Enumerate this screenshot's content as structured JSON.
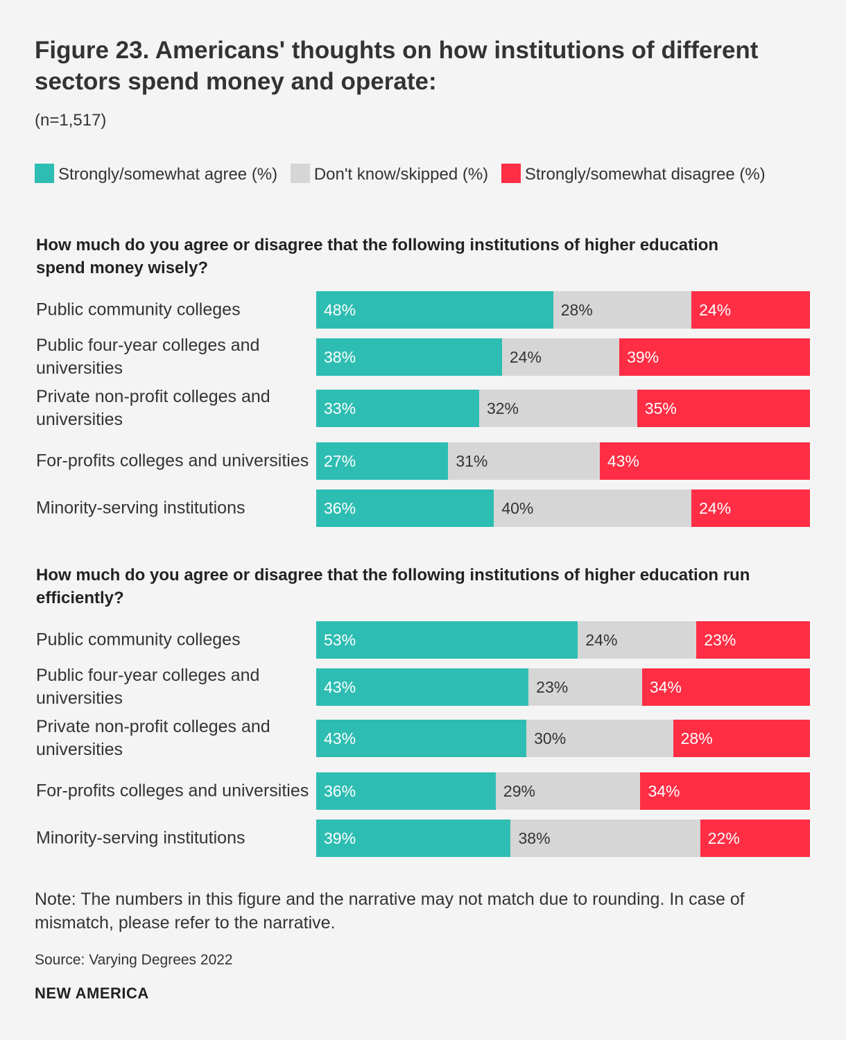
{
  "title": "Figure 23. Americans' thoughts on how institutions of different sectors spend money and operate:",
  "subtitle": "(n=1,517)",
  "legend": [
    {
      "label": "Strongly/somewhat agree (%)",
      "color": "#2ebdb2"
    },
    {
      "label": "Don't know/skipped (%)",
      "color": "#d6d6d6"
    },
    {
      "label": "Strongly/somewhat disagree (%)",
      "color": "#ff2e45"
    }
  ],
  "chart_data": [
    {
      "type": "bar",
      "orientation": "horizontal",
      "stacked": true,
      "title": "How much do you agree or disagree that the following institutions of higher education spend money wisely?",
      "categories": [
        "Public community colleges",
        "Public four-year colleges and universities",
        "Private non-profit colleges and universities",
        "For-profits colleges and universities",
        "Minority-serving institutions"
      ],
      "series": [
        {
          "name": "Strongly/somewhat agree (%)",
          "values": [
            48,
            38,
            33,
            27,
            36
          ]
        },
        {
          "name": "Don't know/skipped (%)",
          "values": [
            28,
            24,
            32,
            31,
            40
          ]
        },
        {
          "name": "Strongly/somewhat disagree (%)",
          "values": [
            24,
            39,
            35,
            43,
            24
          ]
        }
      ]
    },
    {
      "type": "bar",
      "orientation": "horizontal",
      "stacked": true,
      "title": "How much do you agree or disagree that the following institutions of higher education run efficiently?",
      "categories": [
        "Public community colleges",
        "Public four-year colleges and universities",
        "Private non-profit colleges and universities",
        "For-profits colleges and universities",
        "Minority-serving institutions"
      ],
      "series": [
        {
          "name": "Strongly/somewhat agree (%)",
          "values": [
            53,
            43,
            43,
            36,
            39
          ]
        },
        {
          "name": "Don't know/skipped (%)",
          "values": [
            24,
            23,
            30,
            29,
            38
          ]
        },
        {
          "name": "Strongly/somewhat disagree (%)",
          "values": [
            23,
            34,
            28,
            34,
            22
          ]
        }
      ]
    }
  ],
  "note": "Note: The numbers in this figure and the narrative may not match due to rounding. In case of mismatch, please refer to the narrative.",
  "source": "Source: Varying Degrees 2022",
  "brand": "NEW AMERICA"
}
